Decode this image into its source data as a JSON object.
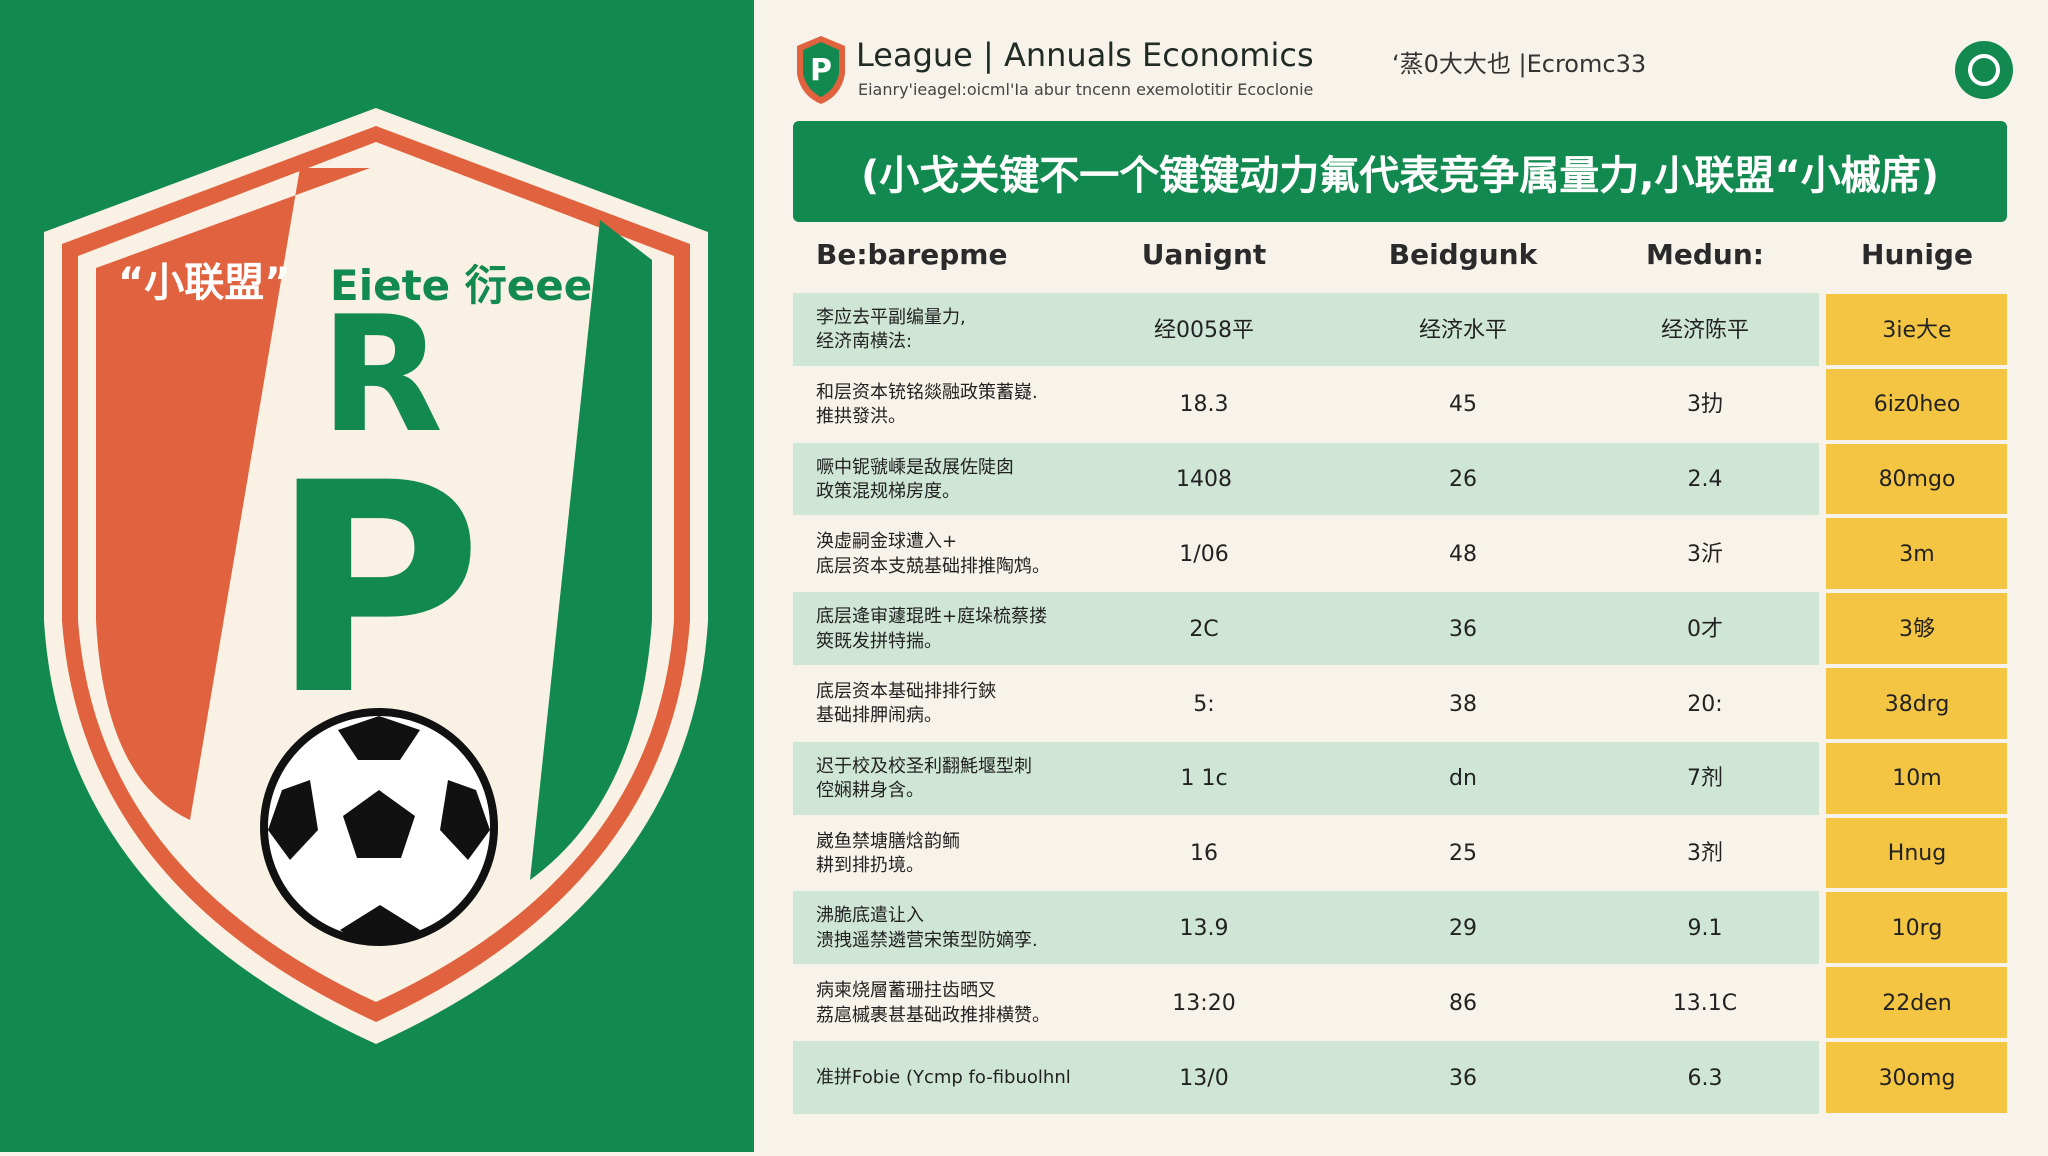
{
  "crest": {
    "tagline": "“小联盟”",
    "word": "Eiete 衍eee",
    "letter_top": "R",
    "letter_main": "P"
  },
  "header": {
    "title_left": "League",
    "separator": "|",
    "title_right": "Annuals Economics",
    "extra": "‘蒸0大大也 |Ecromc33",
    "subtitle": "Eianry'ieagel:oicml'Ia abur tncenn exemolotitir Ecoclonie",
    "logo_text": "P"
  },
  "banner": {
    "text": "(小戈关键不一个键键动力氟代表竞争属量力,小联盟“小槭席)"
  },
  "table": {
    "columns": [
      "Be:barepme",
      "Uanignt",
      "Beidgunk",
      "Medun:",
      "Hunige"
    ],
    "rows": [
      [
        "李应去平副编量力,\n经济南横法:",
        "经0058平",
        "经济水平",
        "经济陈平",
        "3ie大e"
      ],
      [
        "和层资本铳铭燚融政策蓄嶷.\n推拱發洪。",
        "18.3",
        "45",
        "3扐",
        "6iz0heo"
      ],
      [
        "噘中铌虢嵊是敌展佐陡囱\n政策混规梯房度。",
        "1408",
        "26",
        "2.4",
        "80mgo"
      ],
      [
        "涣虚嗣金球遭入+\n底层资本支兢基础排推陶鸩。",
        "1/06",
        "48",
        "3沂",
        "3m"
      ],
      [
        "底层逄审蘧琨甠+庭垛梳蔡搂\n筴既发拼特揣。",
        "2C",
        "36",
        "0才",
        "3够"
      ],
      [
        "底层资本基础排排行鋏\n基础排胛闹病。",
        "5:",
        "38",
        "20:",
        "38drg"
      ],
      [
        "迟于校及校圣利翻魹堰型刺\n倥娴耕身含。",
        "1 1c",
        "dn",
        "7剂",
        "10m"
      ],
      [
        "崴鱼禁塘膳焓韵鲕\n耕到排扔境。",
        "16",
        "25",
        "3剂",
        "Hnug"
      ],
      [
        "沸脆底遣让入\n溃拽遥禁遴营宋策型防嫡孪.",
        "13.9",
        "29",
        "9.1",
        "10rg"
      ],
      [
        "病柬烧層蓄珊拄齿晒叉\n荔扈槭裹甚基础政推排横赞。",
        "13:20",
        "86",
        "13.1C",
        "22den"
      ],
      [
        "准拼Fobie (Ycmp fo-fibuolhnl",
        "13/0",
        "36",
        "6.3",
        "30omg"
      ]
    ]
  }
}
